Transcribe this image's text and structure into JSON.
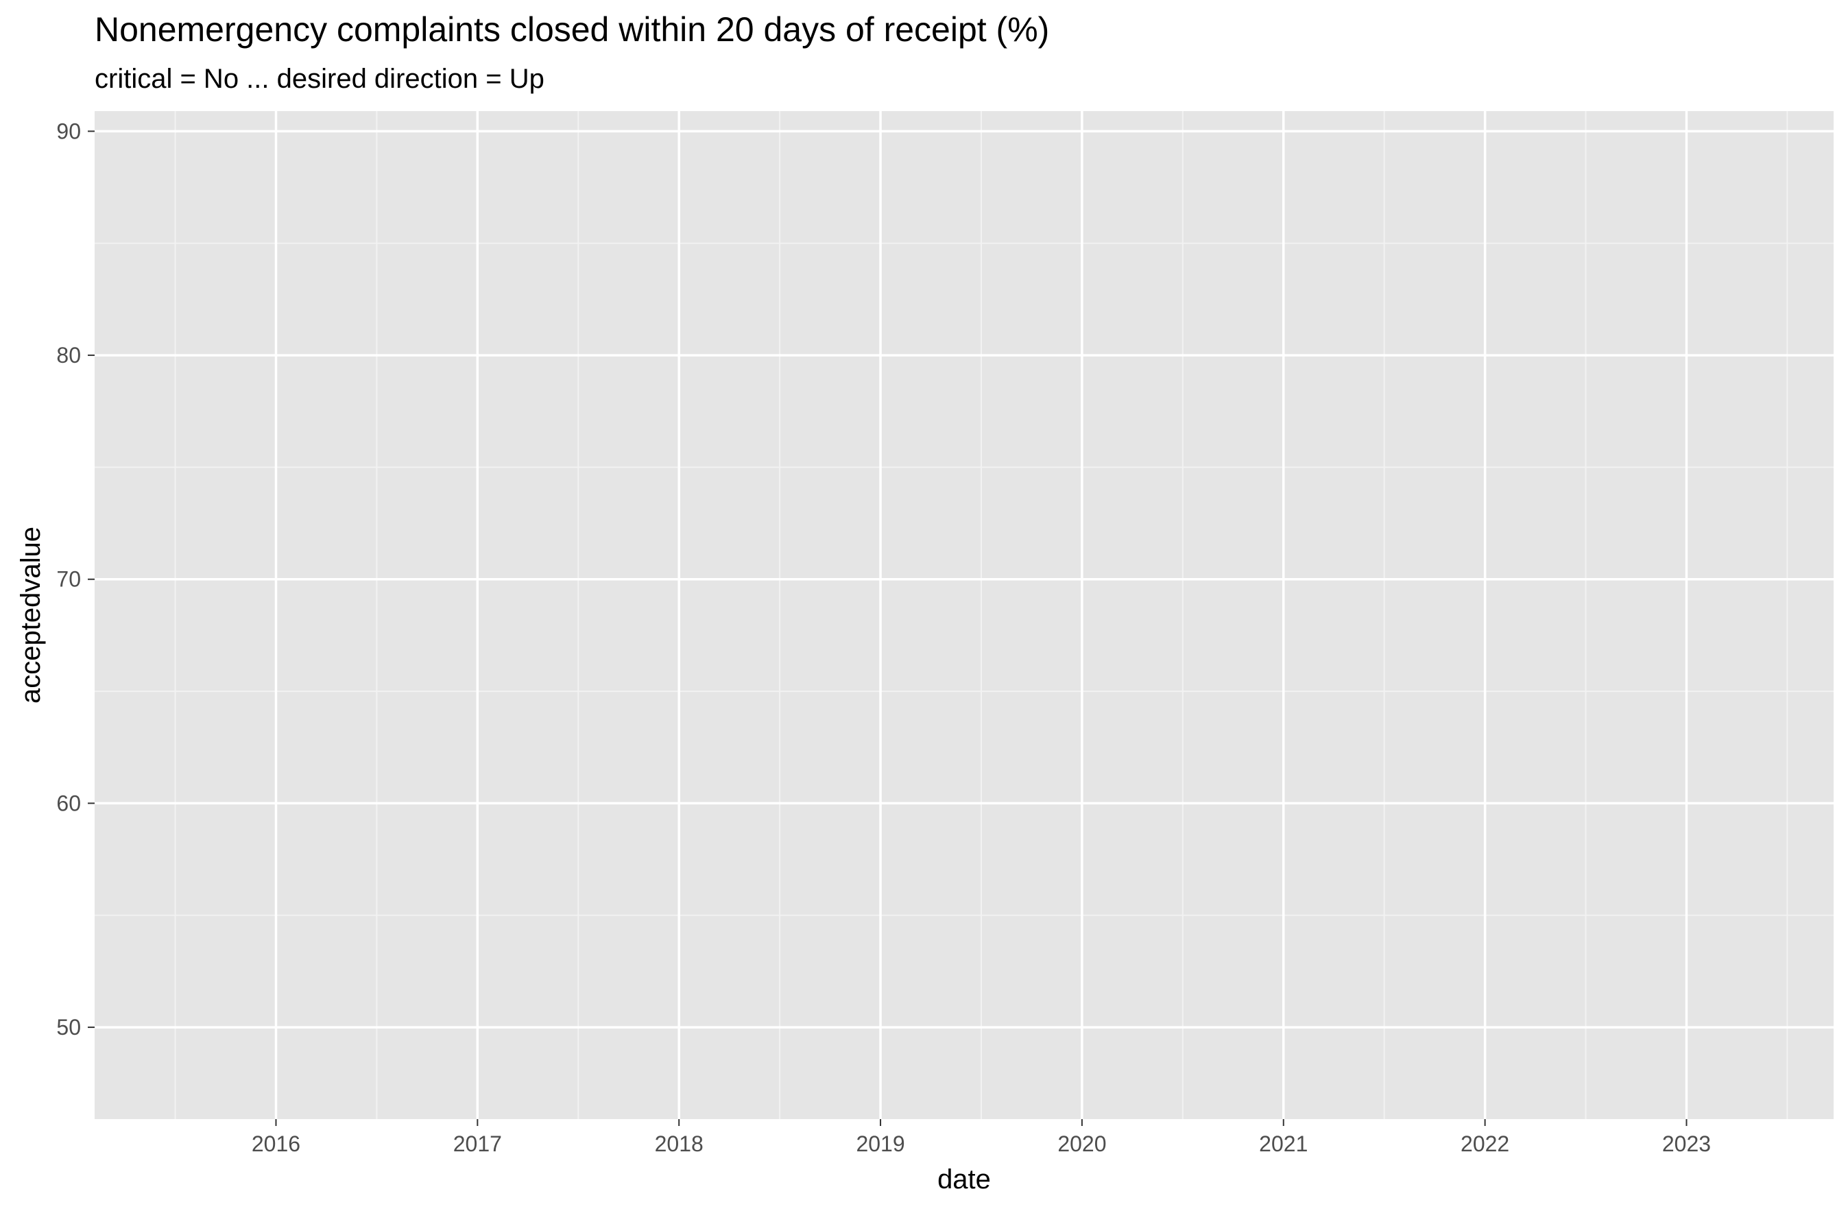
{
  "chart_data": {
    "type": "line",
    "title": "Nonemergency complaints closed within 20 days of receipt (%)",
    "subtitle": "critical = No ... desired direction = Up",
    "xlabel": "date",
    "ylabel": "acceptedvalue",
    "x_ticks": [
      "2016",
      "2017",
      "2018",
      "2019",
      "2020",
      "2021",
      "2022",
      "2023"
    ],
    "x_tick_values": [
      2016,
      2017,
      2018,
      2019,
      2020,
      2021,
      2022,
      2023
    ],
    "y_ticks": [
      "50",
      "60",
      "70",
      "80",
      "90"
    ],
    "y_tick_values": [
      50,
      60,
      70,
      80,
      90
    ],
    "xlim": [
      2015.1,
      2023.73
    ],
    "ylim": [
      45.9,
      90.9
    ],
    "grid": true,
    "series": [],
    "colors": {
      "panel_background": "#e5e5e5",
      "grid_major": "#ffffff",
      "grid_minor": "#f2f2f2",
      "tick_text": "#4d4d4d",
      "tick_mark": "#333333"
    }
  }
}
